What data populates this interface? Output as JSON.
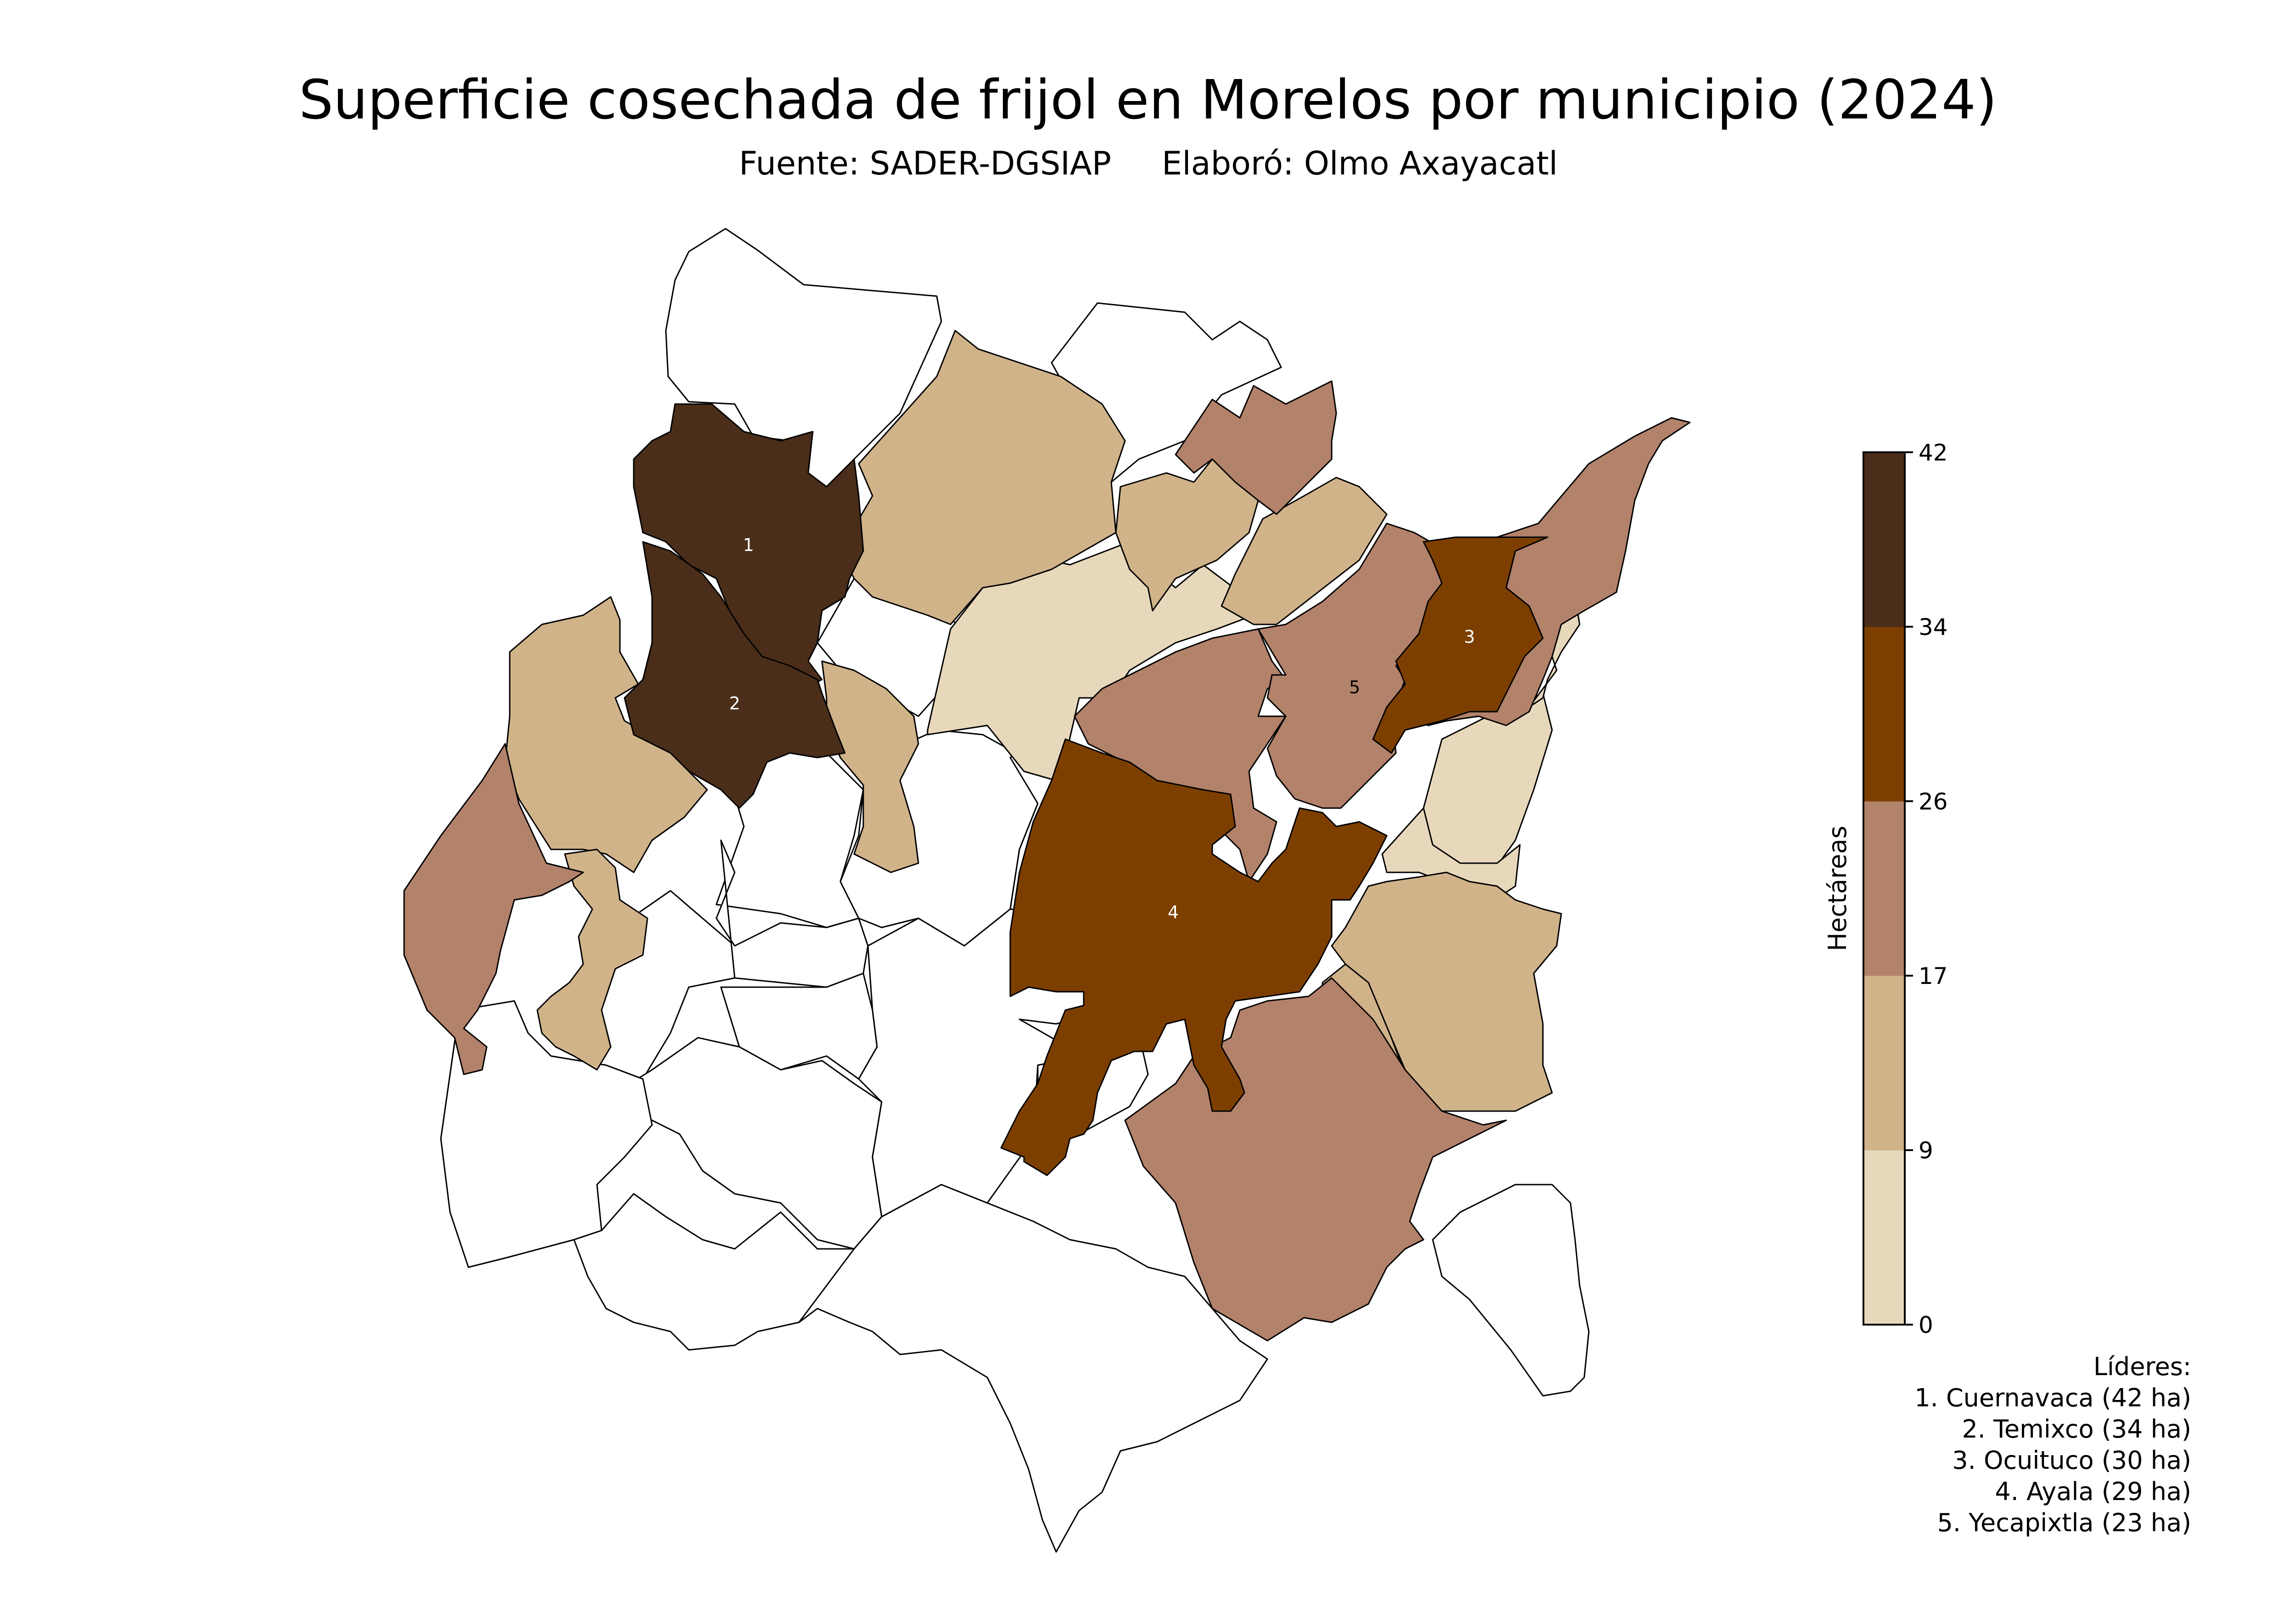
{
  "title": "Superficie cosechada de frijol en Morelos por municipio (2024)",
  "subtitle_source": "Fuente: SADER-DGSIAP",
  "subtitle_author": "Elaboró: Olmo Axayacatl",
  "colorbar": {
    "label": "Hectáreas",
    "ticks": [
      0,
      9,
      17,
      26,
      34,
      42
    ],
    "tick_labels": [
      "0",
      "9",
      "17",
      "26",
      "34",
      "42"
    ],
    "colors": [
      "#e8d8bb",
      "#d1b38a",
      "#b3826a",
      "#7d3f00",
      "#4a2e1a"
    ]
  },
  "legend": {
    "heading": "Líderes:",
    "items": [
      "1. Cuernavaca (42 ha)",
      "2. Temixco (34 ha)",
      "3. Ocuituco (30 ha)",
      "4. Ayala (29 ha)",
      "5. Yecapixtla (23 ha)"
    ]
  },
  "regions": [
    {
      "name": "Cuernavaca",
      "rank": "1",
      "value": 42
    },
    {
      "name": "Temixco",
      "rank": "2",
      "value": 34
    },
    {
      "name": "Ocuituco",
      "rank": "3",
      "value": 30
    },
    {
      "name": "Ayala",
      "rank": "4",
      "value": 29
    },
    {
      "name": "Yecapixtla",
      "rank": "5",
      "value": 23
    }
  ],
  "chart_data": {
    "type": "choropleth",
    "title": "Superficie cosechada de frijol en Morelos por municipio (2024)",
    "colorbar_label": "Hectáreas",
    "colorbar_range": [
      0,
      42
    ],
    "bins": [
      0,
      9,
      17,
      26,
      34,
      42
    ],
    "leaders": [
      {
        "rank": 1,
        "municipio": "Cuernavaca",
        "ha": 42
      },
      {
        "rank": 2,
        "municipio": "Temixco",
        "ha": 34
      },
      {
        "rank": 3,
        "municipio": "Ocuituco",
        "ha": 30
      },
      {
        "rank": 4,
        "municipio": "Ayala",
        "ha": 29
      },
      {
        "rank": 5,
        "municipio": "Yecapixtla",
        "ha": 23
      }
    ]
  }
}
